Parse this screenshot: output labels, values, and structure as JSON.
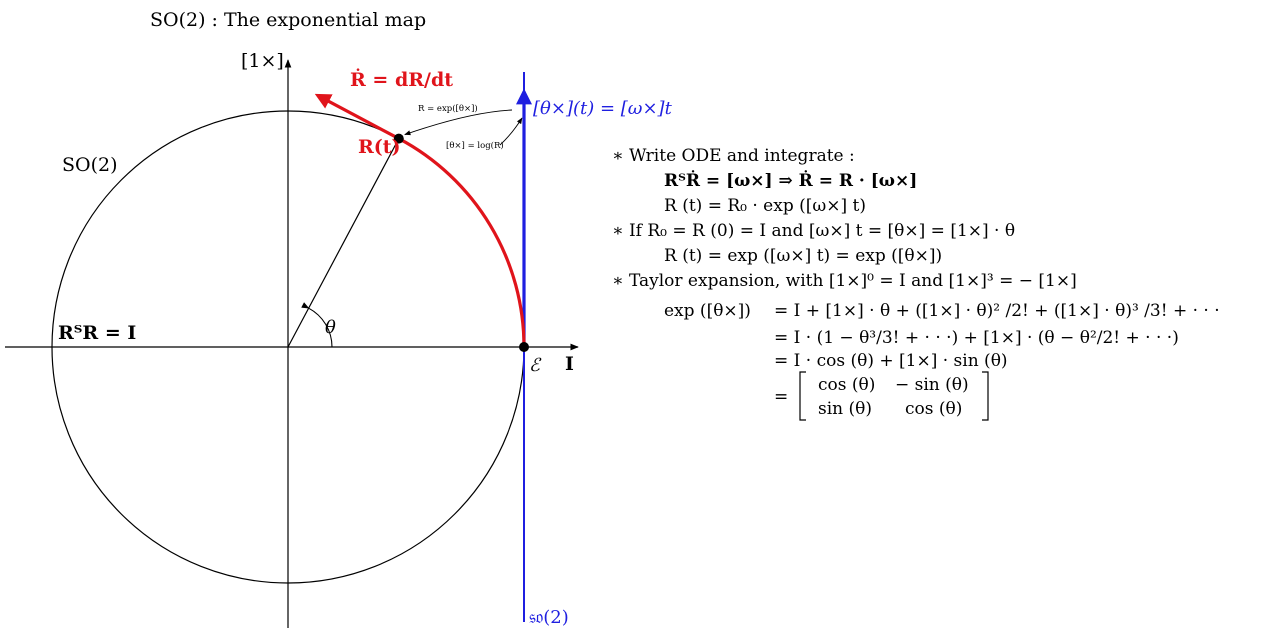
{
  "title": "SO(2) : The exponential map",
  "diagram": {
    "labels": {
      "group": "SO(2)",
      "constraint": "RᵀR = I",
      "axis_y": "[1×]",
      "axis_x": "I",
      "identity": "ℰ",
      "angle": "θ",
      "point": "R(t)",
      "velocity": "Ṙ = dR/dt",
      "exp_note": "R = exp([θ×])",
      "log_note": "[θ×] = log(R)",
      "tangent_vector": "[θ×](t) = [ω×]t",
      "algebra": "𝔰𝔬(2)"
    },
    "angle_deg": 62,
    "colors": {
      "red": "#e0141b",
      "blue": "#1f1fe0",
      "ink": "#000000"
    }
  },
  "equations": [
    "∗ Write ODE and integrate :",
    "RᵀṘ   = [ω×] ⇒ Ṙ = R · [ω×]",
    "R (t)   = R₀ · exp ([ω×] t)",
    "∗ If R₀ = R (0) = I and  [ω×] t = [θ×] = [1×] · θ",
    "R (t)   = exp ([ω×] t) = exp ([θ×])",
    "∗ Taylor expansion, with  [1×]⁰ = I and  [1×]³ = − [1×]",
    "exp ([θ×])",
    "= I + [1×] · θ + ([1×] · θ)² /2! + ([1×] · θ)³ /3! + · · ·",
    "= I · (1 − θ³/3! + · · ·) + [1×] · (θ − θ²/2! + · · ·)",
    "= I · cos (θ) + [1×] · sin (θ)",
    "="
  ],
  "matrix": [
    [
      "cos (θ)",
      "− sin (θ)"
    ],
    [
      "sin (θ)",
      "cos (θ)"
    ]
  ]
}
